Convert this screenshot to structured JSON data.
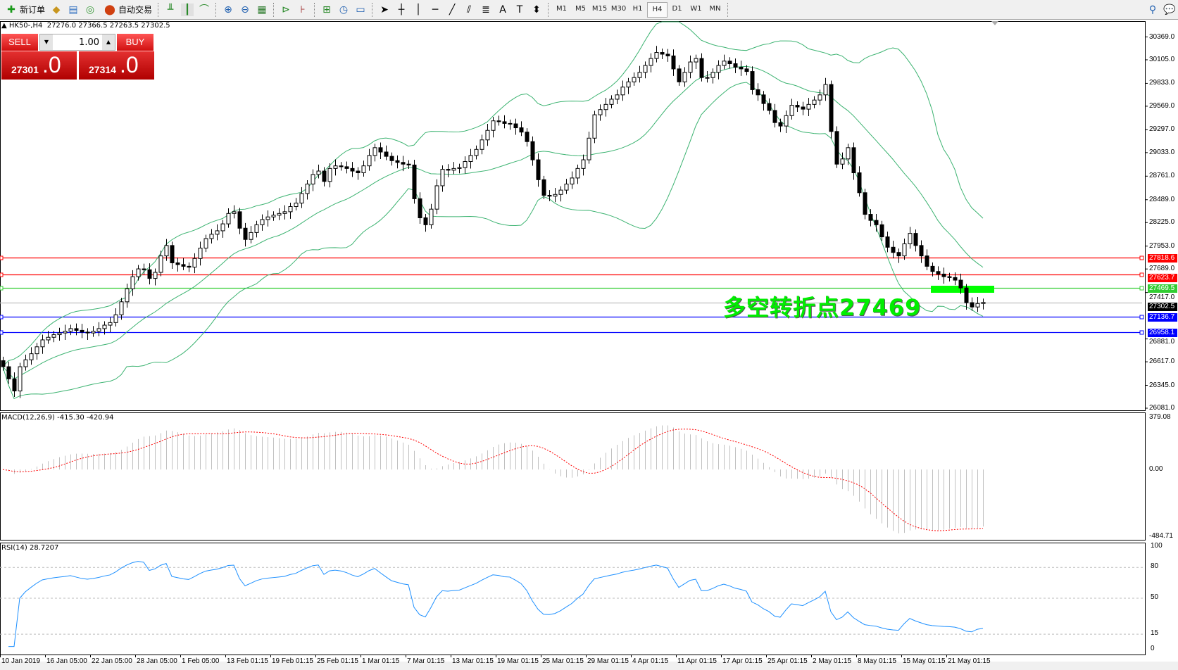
{
  "toolbar": {
    "new_order": "新订单",
    "auto_trade": "自动交易",
    "timeframes": [
      "M1",
      "M5",
      "M15",
      "M30",
      "H1",
      "H4",
      "D1",
      "W1",
      "MN"
    ],
    "active_timeframe": "H4"
  },
  "chart": {
    "symbol_info": "▲ HK50-,H4",
    "ohlc": "27276.0 27366.5 27263.5 27302.5"
  },
  "trade_panel": {
    "sell_label": "SELL",
    "buy_label": "BUY",
    "lot": "1.00",
    "sell_price_main": "27301",
    "sell_price_frac": ".0",
    "buy_price_main": "27314",
    "buy_price_frac": ".0"
  },
  "price_axis": [
    "30369.0",
    "30105.0",
    "29833.0",
    "29569.0",
    "29297.0",
    "29033.0",
    "28761.0",
    "28489.0",
    "28225.0",
    "27953.0",
    "27689.0",
    "27417.0",
    "26881.0",
    "26617.0",
    "26345.0",
    "26081.0"
  ],
  "levels": [
    {
      "value": "27818.6",
      "color": "#ff0000"
    },
    {
      "value": "27623.7",
      "color": "#ff0000"
    },
    {
      "value": "27469.5",
      "color": "#32cd32"
    },
    {
      "value": "27302.5",
      "color": "#000000",
      "line_color": "#c0c0c0"
    },
    {
      "value": "27136.7",
      "color": "#0000ff"
    },
    {
      "value": "26958.1",
      "color": "#0000ff"
    }
  ],
  "annotation": {
    "text": "多空转折点27469",
    "color": "#00ee00",
    "zone_color": "#00ff00"
  },
  "macd": {
    "label": "MACD(12,26,9) -415.30 -420.94",
    "axis": [
      "379.08",
      "0.00",
      "-484.71"
    ],
    "range": [
      -484.71,
      379.08
    ],
    "histogram_color": "#c0c0c0",
    "signal_color": "#ff0000"
  },
  "rsi": {
    "label": "RSI(14) 28.7207",
    "axis": [
      "100",
      "80",
      "50",
      "15",
      "0"
    ],
    "levels": [
      80,
      50,
      15
    ],
    "color": "#1e90ff"
  },
  "time_axis": [
    "10 Jan 2019",
    "16 Jan 05:00",
    "22 Jan 05:00",
    "28 Jan 05:00",
    "1 Feb 05:00",
    "13 Feb 01:15",
    "19 Feb 01:15",
    "25 Feb 01:15",
    "1 Mar 01:15",
    "7 Mar 01:15",
    "13 Mar 01:15",
    "19 Mar 01:15",
    "25 Mar 01:15",
    "29 Mar 01:15",
    "4 Apr 01:15",
    "11 Apr 01:15",
    "17 Apr 01:15",
    "25 Apr 01:15",
    "2 May 01:15",
    "8 May 01:15",
    "15 May 01:15",
    "21 May 01:15"
  ],
  "chart_data": {
    "type": "candlestick",
    "symbol": "HK50-",
    "timeframe": "H4",
    "ylim": [
      26081,
      30369
    ],
    "bollinger_color": "#3cb371",
    "close": [
      26560,
      26420,
      26280,
      26560,
      26640,
      26710,
      26790,
      26870,
      26900,
      26930,
      26950,
      26970,
      27000,
      26980,
      26960,
      26950,
      26970,
      27000,
      27040,
      27070,
      27160,
      27310,
      27460,
      27600,
      27690,
      27680,
      27580,
      27650,
      27840,
      27960,
      27760,
      27740,
      27720,
      27710,
      27810,
      27930,
      28040,
      28090,
      28130,
      28210,
      28330,
      28350,
      28160,
      28030,
      28110,
      28200,
      28260,
      28290,
      28310,
      28330,
      28350,
      28410,
      28450,
      28560,
      28670,
      28780,
      28820,
      28700,
      28850,
      28880,
      28870,
      28850,
      28820,
      28800,
      28880,
      29000,
      29090,
      29040,
      28990,
      28940,
      28920,
      28900,
      28890,
      28500,
      28280,
      28200,
      28380,
      28650,
      28840,
      28830,
      28850,
      28860,
      28930,
      29000,
      29070,
      29180,
      29290,
      29400,
      29390,
      29370,
      29365,
      29320,
      29270,
      29160,
      28950,
      28720,
      28540,
      28530,
      28550,
      28600,
      28670,
      28740,
      28850,
      28950,
      29200,
      29470,
      29530,
      29590,
      29650,
      29700,
      29790,
      29850,
      29900,
      29960,
      30040,
      30120,
      30190,
      30170,
      30150,
      30000,
      29850,
      29960,
      30080,
      30120,
      29900,
      29900,
      29960,
      30040,
      30090,
      30060,
      30020,
      30000,
      29970,
      29760,
      29700,
      29600,
      29520,
      29380,
      29340,
      29460,
      29580,
      29560,
      29535,
      29590,
      29640,
      29700,
      29820,
      29277,
      28900,
      28960,
      29090,
      28800,
      28570,
      28320,
      28250,
      28200,
      28060,
      27940,
      27880,
      27840,
      27980,
      28100,
      27960,
      27840,
      27720,
      27660,
      27630,
      27600,
      27590,
      27560,
      27470,
      27300,
      27250,
      27290,
      27302.5
    ]
  }
}
